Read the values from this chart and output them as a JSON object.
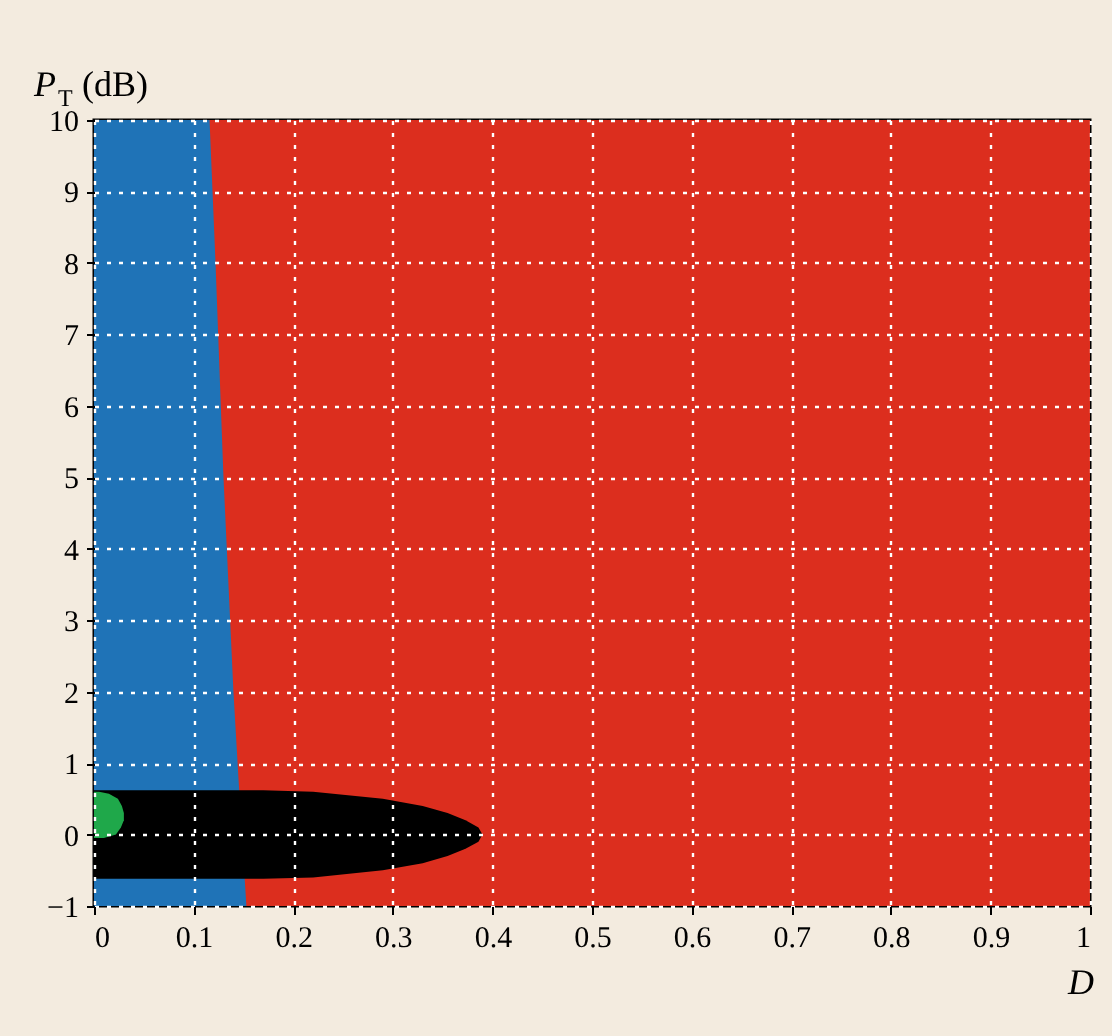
{
  "chart_data": {
    "type": "area",
    "orientation": "horizontal",
    "xlabel": "D",
    "ylabel": "P$_{T}$ (dB)",
    "xlim": [
      0,
      1
    ],
    "ylim": [
      -1,
      10
    ],
    "xticks": [
      0,
      0.1,
      0.2,
      0.3,
      0.4,
      0.5,
      0.6,
      0.7,
      0.8,
      0.9,
      1
    ],
    "yticks": [
      -1,
      0,
      1,
      2,
      3,
      4,
      5,
      6,
      7,
      8,
      9,
      10
    ],
    "grid": true,
    "bands": [
      {
        "axis": "x",
        "from": 0,
        "to": 1,
        "color": "#dc2e1e"
      }
    ],
    "series": [
      {
        "color": "#1f73b7",
        "x": [
          -1,
          0.8,
          2,
          5,
          8,
          10
        ],
        "values": [
          0.153,
          0.145,
          0.14,
          0.13,
          0.122,
          0.116
        ]
      },
      {
        "color": "#000000",
        "x": [
          -0.62,
          -0.6,
          -0.5,
          -0.4,
          -0.3,
          -0.2,
          -0.1,
          0,
          0.1,
          0.2,
          0.3,
          0.4,
          0.5,
          0.6,
          0.62
        ],
        "values": [
          0.17,
          0.22,
          0.29,
          0.33,
          0.355,
          0.373,
          0.386,
          0.39,
          0.386,
          0.373,
          0.355,
          0.33,
          0.29,
          0.22,
          0.17
        ]
      },
      {
        "color": "#1fa84a",
        "x": [
          -0.05,
          0.0,
          0.1,
          0.2,
          0.3,
          0.4,
          0.5,
          0.57,
          0.6
        ],
        "values": [
          0.01,
          0.022,
          0.027,
          0.03,
          0.03,
          0.028,
          0.024,
          0.015,
          0.005
        ]
      }
    ]
  }
}
